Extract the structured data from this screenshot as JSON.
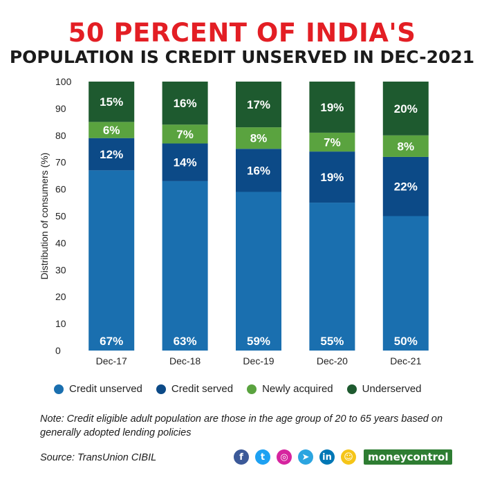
{
  "header": {
    "title_line1": "50 PERCENT OF INDIA'S",
    "title_line2": "POPULATION IS CREDIT UNSERVED IN DEC-2021"
  },
  "chart_data": {
    "type": "bar",
    "stacked": true,
    "categories": [
      "Dec-17",
      "Dec-18",
      "Dec-19",
      "Dec-20",
      "Dec-21"
    ],
    "series": [
      {
        "name": "Credit unserved",
        "color": "#1a6faf",
        "values": [
          67,
          63,
          59,
          55,
          50
        ],
        "labels": [
          "67%",
          "63%",
          "59%",
          "55%",
          "50%"
        ]
      },
      {
        "name": "Credit served",
        "color": "#0c4a87",
        "values": [
          12,
          14,
          16,
          19,
          22
        ],
        "labels": [
          "12%",
          "14%",
          "16%",
          "19%",
          "22%"
        ]
      },
      {
        "name": "Newly acquired",
        "color": "#5aa33f",
        "values": [
          6,
          7,
          8,
          7,
          8
        ],
        "labels": [
          "6%",
          "7%",
          "8%",
          "7%",
          "8%"
        ]
      },
      {
        "name": "Underserved",
        "color": "#1e5a2f",
        "values": [
          15,
          16,
          17,
          19,
          20
        ],
        "labels": [
          "15%",
          "16%",
          "17%",
          "19%",
          "20%"
        ]
      }
    ],
    "yticks": [
      "0",
      "10",
      "20",
      "30",
      "40",
      "50",
      "60",
      "70",
      "80",
      "90",
      "100"
    ],
    "ylabel": "Distribution of consumers (%)",
    "xlabel": "",
    "ylim": [
      0,
      100
    ]
  },
  "legend": {
    "items": [
      {
        "label": "Credit unserved",
        "color": "#1a6faf"
      },
      {
        "label": "Credit served",
        "color": "#0c4a87"
      },
      {
        "label": "Newly acquired",
        "color": "#5aa33f"
      },
      {
        "label": "Underserved",
        "color": "#1e5a2f"
      }
    ]
  },
  "footer": {
    "note": "Note: Credit eligible adult population are those in the age   group of 20 to 65 years based on generally adopted lending policies",
    "source": "Source: TransUnion CIBIL",
    "brand": "moneycontrol",
    "social": [
      {
        "icon": "facebook-icon",
        "glyph": "f",
        "color": "#3b5998"
      },
      {
        "icon": "twitter-icon",
        "glyph": "t",
        "color": "#1da1f2"
      },
      {
        "icon": "instagram-icon",
        "glyph": "◎",
        "color": "#d6249f"
      },
      {
        "icon": "telegram-icon",
        "glyph": "➤",
        "color": "#2ca5e0"
      },
      {
        "icon": "linkedin-icon",
        "glyph": "in",
        "color": "#0077b5"
      },
      {
        "icon": "snapchat-icon",
        "glyph": "☺",
        "color": "#f5c518"
      }
    ]
  }
}
